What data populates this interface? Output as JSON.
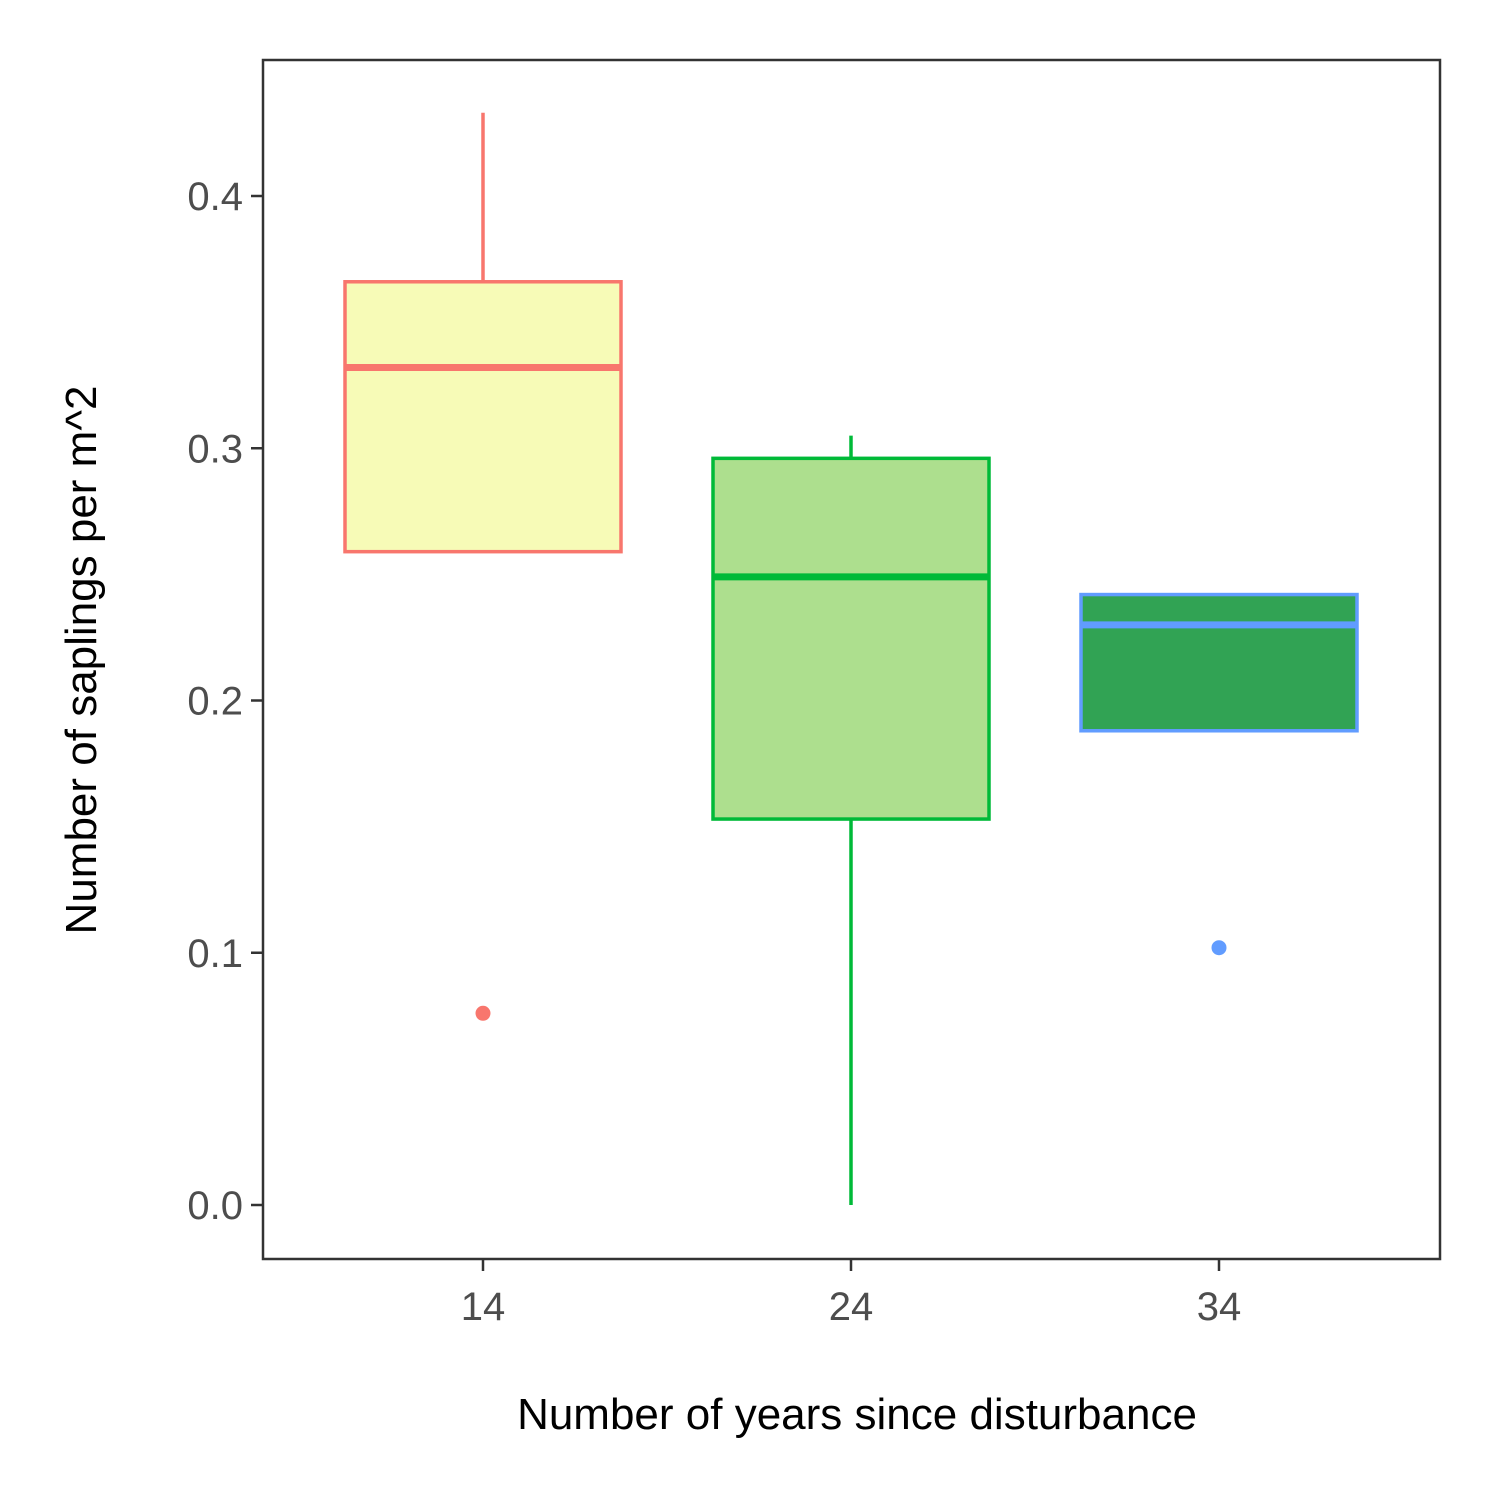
{
  "chart_data": {
    "type": "boxplot",
    "title": "",
    "xlabel": "Number of years since disturbance",
    "ylabel": "Number of saplings per m^2",
    "ylim": [
      -0.022,
      0.452
    ],
    "yticks": [
      0.0,
      0.1,
      0.2,
      0.3,
      0.4
    ],
    "ytick_labels": [
      "0.0",
      "0.1",
      "0.2",
      "0.3",
      "0.4"
    ],
    "categories": [
      "14",
      "24",
      "34"
    ],
    "grid": false,
    "legend": "none",
    "boxes": [
      {
        "category": "14",
        "whisker_low": 0.259,
        "q1": 0.259,
        "median": 0.332,
        "q3": 0.366,
        "whisker_high": 0.433,
        "outliers": [
          0.076
        ],
        "fill": "#f7fbb7",
        "stroke": "#f8766d"
      },
      {
        "category": "24",
        "whisker_low": 0.0,
        "q1": 0.153,
        "median": 0.249,
        "q3": 0.296,
        "whisker_high": 0.305,
        "outliers": [],
        "fill": "#addf8e",
        "stroke": "#00ba38"
      },
      {
        "category": "34",
        "whisker_low": 0.188,
        "q1": 0.188,
        "median": 0.23,
        "q3": 0.242,
        "whisker_high": 0.242,
        "outliers": [
          0.102
        ],
        "fill": "#31a354",
        "stroke": "#619cff"
      }
    ]
  }
}
